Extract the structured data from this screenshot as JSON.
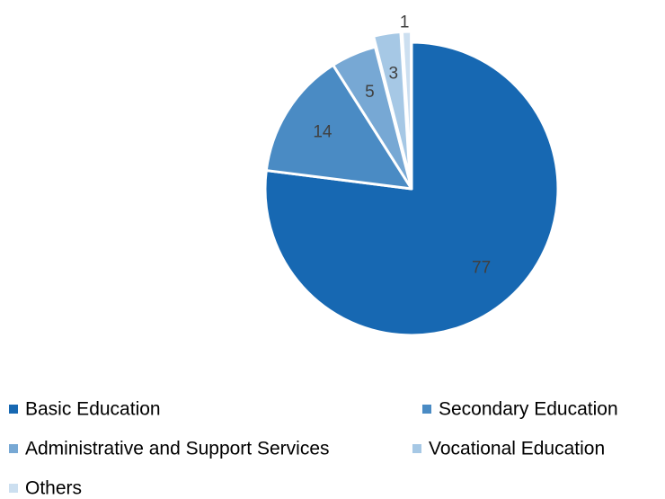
{
  "chart_data": {
    "type": "pie",
    "categories": [
      "Basic Education",
      "Secondary Education",
      "Administrative and Support Services",
      "Vocational Education",
      "Others"
    ],
    "values": [
      77,
      14,
      5,
      3,
      1
    ],
    "colors": [
      "#1768b2",
      "#4a8bc4",
      "#77a8d4",
      "#a6c8e5",
      "#ccdff0"
    ],
    "exploded": [
      false,
      false,
      false,
      true,
      true
    ],
    "data_labels": [
      "77",
      "14",
      "5",
      "3",
      "1"
    ],
    "legend_position": "bottom",
    "title": "",
    "start_angle": "12 o'clock, clockwise"
  }
}
